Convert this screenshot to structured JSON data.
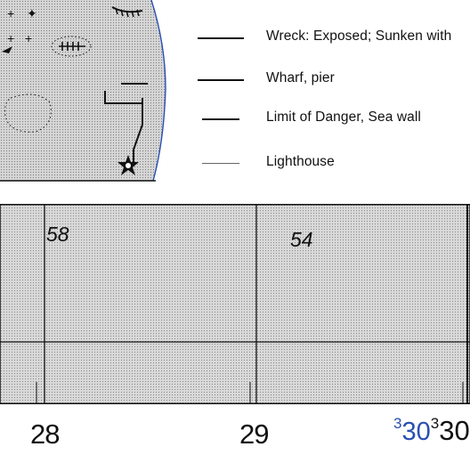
{
  "legend": {
    "items": [
      {
        "label": "Wreck:  Exposed; Sunken with"
      },
      {
        "label": "Wharf,  pier"
      },
      {
        "label": "Limit of Danger, Sea  wall"
      },
      {
        "label": "Lighthouse"
      }
    ]
  },
  "grid": {
    "sheet_numbers": [
      "58",
      "54"
    ],
    "bottom_labels": [
      "28",
      "29"
    ],
    "edge_label_small": "3",
    "edge_label_blue": "30",
    "edge_label_small_2": "3",
    "edge_label_cut": "30"
  },
  "colors": {
    "coastline": "#2a4fb4",
    "land": "#d9d9d9",
    "ink": "#111111"
  }
}
